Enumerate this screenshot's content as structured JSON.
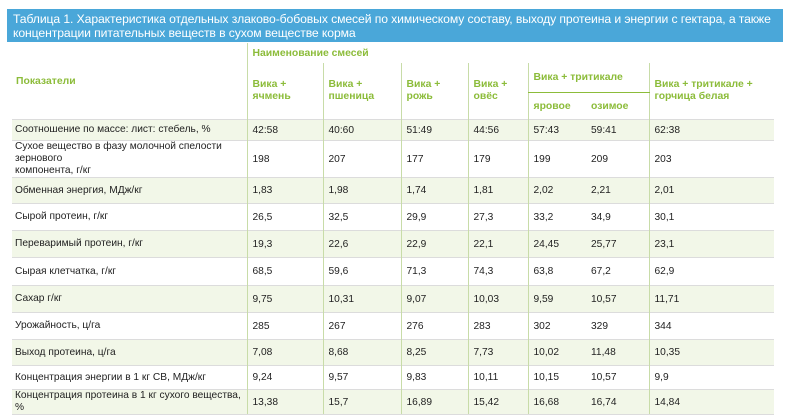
{
  "caption": "Таблица 1. Характеристика отдельных злаково-бобовых смесей по химическому составу, выходу протеина и энергии с гектара, а также концентрации питательных веществ в сухом веществе корма",
  "header": {
    "indicator": "Показатели",
    "group": "Наименование смесей",
    "triticale": "Вика + тритикале",
    "sub": [
      "яровое",
      "озимое"
    ],
    "cols": [
      {
        "l1": "Вика +",
        "l2": "ячмень"
      },
      {
        "l1": "Вика +",
        "l2": "пшеница"
      },
      {
        "l1": "Вика +",
        "l2": "рожь"
      },
      {
        "l1": "Вика +",
        "l2": "овёс"
      },
      {
        "l1": "Вика + тритикале +",
        "l2": "горчица белая"
      }
    ]
  },
  "colors": {
    "caption_bg": "#4aa7d9",
    "header_text": "#8cbc3a",
    "row_shade": "#f2f7e8"
  },
  "rows": [
    {
      "label": [
        "Соотношение по массе: лист: стебель, %"
      ],
      "values": [
        "42:58",
        "40:60",
        "51:49",
        "44:56",
        "57:43",
        "59:41",
        "62:38"
      ]
    },
    {
      "label": [
        "Сухое вещество в фазу молочной спелости зернового",
        "компонента, г/кг"
      ],
      "values": [
        "198",
        "207",
        "177",
        "179",
        "199",
        "209",
        "203"
      ]
    },
    {
      "label": [
        "Обменная энергия, МДж/кг"
      ],
      "values": [
        "1,83",
        "1,98",
        "1,74",
        "1,81",
        "2,02",
        "2,21",
        "2,01"
      ]
    },
    {
      "label": [
        "Сырой протеин, г/кг"
      ],
      "values": [
        "26,5",
        "32,5",
        "29,9",
        "27,3",
        "33,2",
        "34,9",
        "30,1"
      ]
    },
    {
      "label": [
        "Переваримый протеин, г/кг"
      ],
      "values": [
        "19,3",
        "22,6",
        "22,9",
        "22,1",
        "24,45",
        "25,77",
        "23,1"
      ]
    },
    {
      "label": [
        "Сырая клетчатка, г/кг"
      ],
      "values": [
        "68,5",
        "59,6",
        "71,3",
        "74,3",
        "63,8",
        "67,2",
        "62,9"
      ]
    },
    {
      "label": [
        "Сахар г/кг"
      ],
      "values": [
        "9,75",
        "10,31",
        "9,07",
        "10,03",
        "9,59",
        "10,57",
        "11,71"
      ]
    },
    {
      "label": [
        "Урожайность, ц/га"
      ],
      "values": [
        "285",
        "267",
        "276",
        "283",
        "302",
        "329",
        "344"
      ]
    },
    {
      "label": [
        "Выход протеина, ц/га"
      ],
      "values": [
        "7,08",
        "8,68",
        "8,25",
        "7,73",
        "10,02",
        "11,48",
        "10,35"
      ]
    },
    {
      "label": [
        "Концентрация энергии в 1 кг СВ, МДж/кг"
      ],
      "values": [
        "9,24",
        "9,57",
        "9,83",
        "10,11",
        "10,15",
        "10,57",
        "9,9"
      ]
    },
    {
      "label": [
        "Концентрация протеина в 1 кг сухого вещества, %"
      ],
      "values": [
        "13,38",
        "15,7",
        "16,89",
        "15,42",
        "16,68",
        "16,74",
        "14,84"
      ]
    }
  ]
}
